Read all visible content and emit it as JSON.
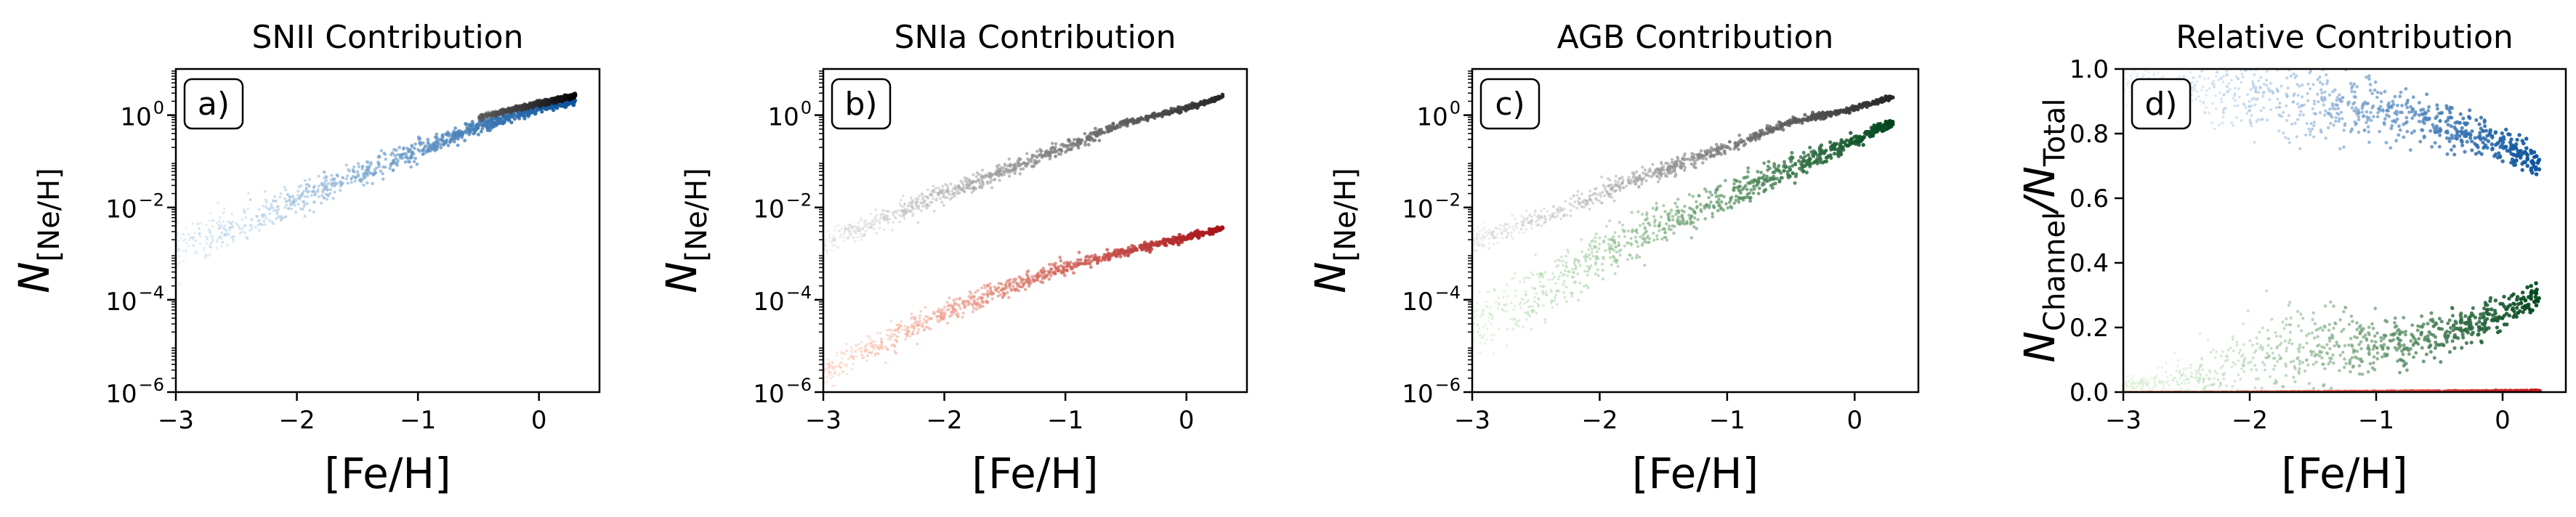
{
  "chart_data": [
    {
      "panel_label": "a)",
      "type": "scatter",
      "title": "SNII Contribution",
      "xlabel": "[Fe/H]",
      "ylabel_main": "N",
      "ylabel_sub": "[Ne/H]",
      "yscale": "log",
      "xlim": [
        -3,
        0.5
      ],
      "ylim_log10": [
        -6,
        1
      ],
      "x_ticks": [
        -3,
        -2,
        -1,
        0
      ],
      "x_tick_labels": [
        "−3",
        "−2",
        "−1",
        "0"
      ],
      "y_ticks_log10": [
        -6,
        -4,
        -2,
        0
      ],
      "y_tick_labels": [
        "10",
        "10",
        "10",
        "10"
      ],
      "y_tick_exponents": [
        "−6",
        "−4",
        "−2",
        "0"
      ],
      "series": [
        {
          "color_light": "#b7d4ea",
          "color_dark": "#08519c",
          "points": [
            [
              -3.0,
              -2.85
            ],
            [
              -2.5,
              -2.45
            ],
            [
              -2.0,
              -1.85
            ],
            [
              -1.5,
              -1.3
            ],
            [
              -1.0,
              -0.75
            ],
            [
              -0.5,
              -0.25
            ],
            [
              0.0,
              0.15
            ],
            [
              0.3,
              0.3
            ]
          ],
          "spread": [
            0.35,
            0.3,
            0.25,
            0.2,
            0.15,
            0.1,
            0.06,
            0.05
          ]
        },
        {
          "color_light": "#555555",
          "color_dark": "#000000",
          "points": [
            [
              -0.5,
              -0.05
            ],
            [
              0.0,
              0.25
            ],
            [
              0.3,
              0.42
            ]
          ],
          "spread": [
            0.05,
            0.04,
            0.03
          ]
        }
      ]
    },
    {
      "panel_label": "b)",
      "type": "scatter",
      "title": "SNIa Contribution",
      "xlabel": "[Fe/H]",
      "ylabel_main": "N",
      "ylabel_sub": "[Ne/H]",
      "yscale": "log",
      "xlim": [
        -3,
        0.5
      ],
      "ylim_log10": [
        -6,
        1
      ],
      "x_ticks": [
        -3,
        -2,
        -1,
        0
      ],
      "x_tick_labels": [
        "−3",
        "−2",
        "−1",
        "0"
      ],
      "y_ticks_log10": [
        -6,
        -4,
        -2,
        0
      ],
      "y_tick_labels": [
        "10",
        "10",
        "10",
        "10"
      ],
      "y_tick_exponents": [
        "−6",
        "−4",
        "−2",
        "0"
      ],
      "series": [
        {
          "color_light": "#d0d0d0",
          "color_dark": "#252525",
          "points": [
            [
              -3.0,
              -2.75
            ],
            [
              -2.5,
              -2.25
            ],
            [
              -2.0,
              -1.7
            ],
            [
              -1.5,
              -1.2
            ],
            [
              -1.0,
              -0.7
            ],
            [
              -0.5,
              -0.15
            ],
            [
              0.0,
              0.15
            ],
            [
              0.3,
              0.4
            ]
          ],
          "spread": [
            0.2,
            0.18,
            0.15,
            0.12,
            0.08,
            0.06,
            0.04,
            0.03
          ]
        },
        {
          "color_light": "#fcbba1",
          "color_dark": "#a50f15",
          "points": [
            [
              -3.0,
              -5.6
            ],
            [
              -2.5,
              -4.9
            ],
            [
              -2.0,
              -4.3
            ],
            [
              -1.5,
              -3.75
            ],
            [
              -1.0,
              -3.3
            ],
            [
              -0.5,
              -2.95
            ],
            [
              0.0,
              -2.65
            ],
            [
              0.3,
              -2.45
            ]
          ],
          "spread": [
            0.25,
            0.22,
            0.18,
            0.14,
            0.1,
            0.07,
            0.05,
            0.04
          ]
        }
      ]
    },
    {
      "panel_label": "c)",
      "type": "scatter",
      "title": "AGB Contribution",
      "xlabel": "[Fe/H]",
      "ylabel_main": "N",
      "ylabel_sub": "[Ne/H]",
      "yscale": "log",
      "xlim": [
        -3,
        0.5
      ],
      "ylim_log10": [
        -6,
        1
      ],
      "x_ticks": [
        -3,
        -2,
        -1,
        0
      ],
      "x_tick_labels": [
        "−3",
        "−2",
        "−1",
        "0"
      ],
      "y_ticks_log10": [
        -6,
        -4,
        -2,
        0
      ],
      "y_tick_labels": [
        "10",
        "10",
        "10",
        "10"
      ],
      "y_tick_exponents": [
        "−6",
        "−4",
        "−2",
        "0"
      ],
      "series": [
        {
          "color_light": "#d0d0d0",
          "color_dark": "#252525",
          "points": [
            [
              -3.0,
              -2.75
            ],
            [
              -2.5,
              -2.25
            ],
            [
              -2.0,
              -1.7
            ],
            [
              -1.5,
              -1.2
            ],
            [
              -1.0,
              -0.7
            ],
            [
              -0.5,
              -0.15
            ],
            [
              0.0,
              0.15
            ],
            [
              0.3,
              0.4
            ]
          ],
          "spread": [
            0.2,
            0.18,
            0.15,
            0.12,
            0.08,
            0.06,
            0.04,
            0.03
          ]
        },
        {
          "color_light": "#b5e0ad",
          "color_dark": "#00441b",
          "points": [
            [
              -3.0,
              -4.6
            ],
            [
              -2.5,
              -3.9
            ],
            [
              -2.0,
              -3.0
            ],
            [
              -1.5,
              -2.4
            ],
            [
              -1.0,
              -1.75
            ],
            [
              -0.5,
              -1.15
            ],
            [
              0.0,
              -0.55
            ],
            [
              0.3,
              -0.15
            ]
          ],
          "spread": [
            0.45,
            0.45,
            0.4,
            0.35,
            0.25,
            0.18,
            0.1,
            0.06
          ]
        }
      ]
    },
    {
      "panel_label": "d)",
      "type": "scatter",
      "title": "Relative Contribution",
      "xlabel": "[Fe/H]",
      "ylabel_main": "N",
      "ylabel_sub_num": "Channel",
      "ylabel_sub_den": "Total",
      "yscale": "linear",
      "xlim": [
        -3,
        0.5
      ],
      "ylim": [
        0.0,
        1.0
      ],
      "x_ticks": [
        -3,
        -2,
        -1,
        0
      ],
      "x_tick_labels": [
        "−3",
        "−2",
        "−1",
        "0"
      ],
      "y_ticks": [
        0.0,
        0.2,
        0.4,
        0.6,
        0.8,
        1.0
      ],
      "y_tick_labels": [
        "0.0",
        "0.2",
        "0.4",
        "0.6",
        "0.8",
        "1.0"
      ],
      "series": [
        {
          "color_light": "#c6dbef",
          "color_dark": "#08519c",
          "points": [
            [
              -3.0,
              0.96
            ],
            [
              -2.5,
              0.95
            ],
            [
              -2.0,
              0.92
            ],
            [
              -1.5,
              0.9
            ],
            [
              -1.0,
              0.88
            ],
            [
              -0.5,
              0.83
            ],
            [
              0.0,
              0.76
            ],
            [
              0.3,
              0.7
            ]
          ],
          "spread": [
            0.04,
            0.06,
            0.1,
            0.1,
            0.06,
            0.05,
            0.04,
            0.03
          ]
        },
        {
          "color_light": "#c7e9c0",
          "color_dark": "#00441b",
          "points": [
            [
              -3.0,
              0.02
            ],
            [
              -2.5,
              0.04
            ],
            [
              -2.0,
              0.08
            ],
            [
              -1.5,
              0.12
            ],
            [
              -1.0,
              0.14
            ],
            [
              -0.5,
              0.18
            ],
            [
              0.0,
              0.25
            ],
            [
              0.3,
              0.3
            ]
          ],
          "spread": [
            0.02,
            0.04,
            0.1,
            0.1,
            0.06,
            0.05,
            0.04,
            0.03
          ]
        },
        {
          "color_light": "#fc9272",
          "color_dark": "#cb181d",
          "points": [
            [
              -3.0,
              0.0
            ],
            [
              -2.0,
              0.001
            ],
            [
              -1.0,
              0.002
            ],
            [
              0.0,
              0.003
            ],
            [
              0.3,
              0.004
            ]
          ],
          "spread": [
            0.001,
            0.001,
            0.001,
            0.001,
            0.001
          ]
        }
      ]
    }
  ]
}
